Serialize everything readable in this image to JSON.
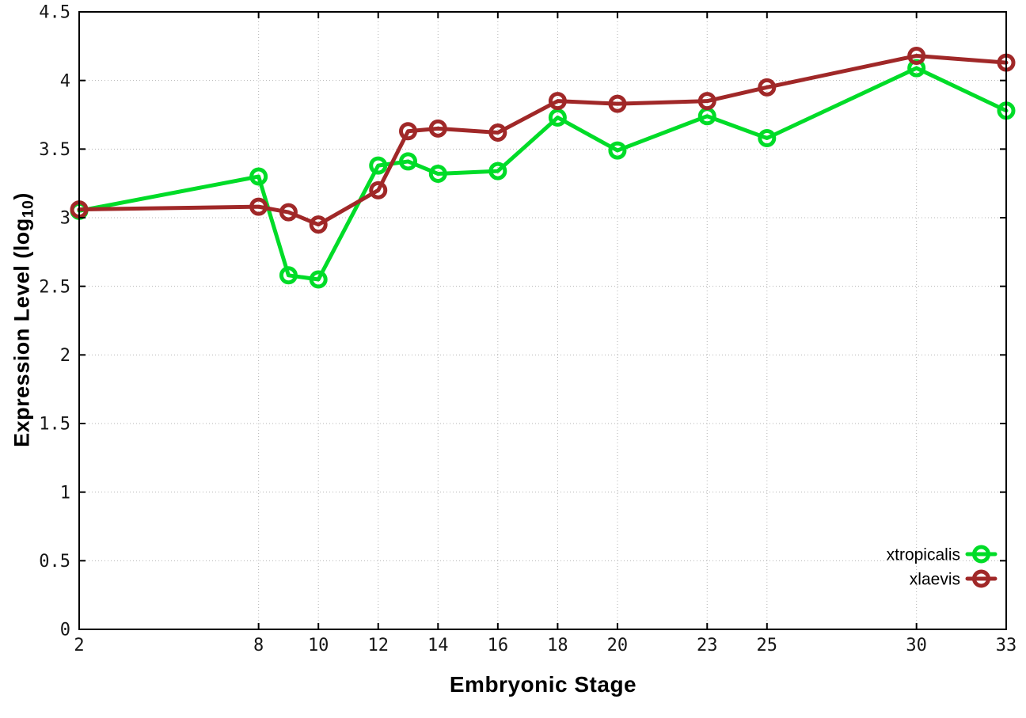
{
  "figure": {
    "xlabel": "Embryonic Stage",
    "ylabel_main": "Expression Level (log",
    "ylabel_sub": "10",
    "ylabel_close": ")",
    "background": "#ffffff",
    "border_color": "#000000",
    "grid_color": "#b4b4b4"
  },
  "chart_data": {
    "type": "line",
    "title": "",
    "xlabel": "Embryonic Stage",
    "ylabel": "Expression Level (log10)",
    "xlim": [
      2,
      33
    ],
    "ylim": [
      0,
      4.5
    ],
    "xticks": [
      2,
      8,
      10,
      12,
      14,
      16,
      18,
      20,
      23,
      25,
      30,
      33
    ],
    "yticks": [
      0,
      0.5,
      1,
      1.5,
      2,
      2.5,
      3,
      3.5,
      4,
      4.5
    ],
    "grid": true,
    "legend_position": "inside-bottom-right",
    "x": [
      2,
      8,
      9,
      10,
      12,
      13,
      14,
      16,
      18,
      20,
      23,
      25,
      30,
      33
    ],
    "series": [
      {
        "name": "xtropicalis",
        "color": "#00dc28",
        "marker": "open-circle",
        "values": [
          3.05,
          3.3,
          2.58,
          2.55,
          3.38,
          3.41,
          3.32,
          3.34,
          3.73,
          3.49,
          3.74,
          3.58,
          4.09,
          3.78
        ]
      },
      {
        "name": "xlaevis",
        "color": "#a02828",
        "marker": "open-circle",
        "values": [
          3.06,
          3.08,
          3.04,
          2.95,
          3.2,
          3.63,
          3.65,
          3.62,
          3.85,
          3.83,
          3.85,
          3.95,
          4.18,
          4.13
        ]
      }
    ]
  }
}
